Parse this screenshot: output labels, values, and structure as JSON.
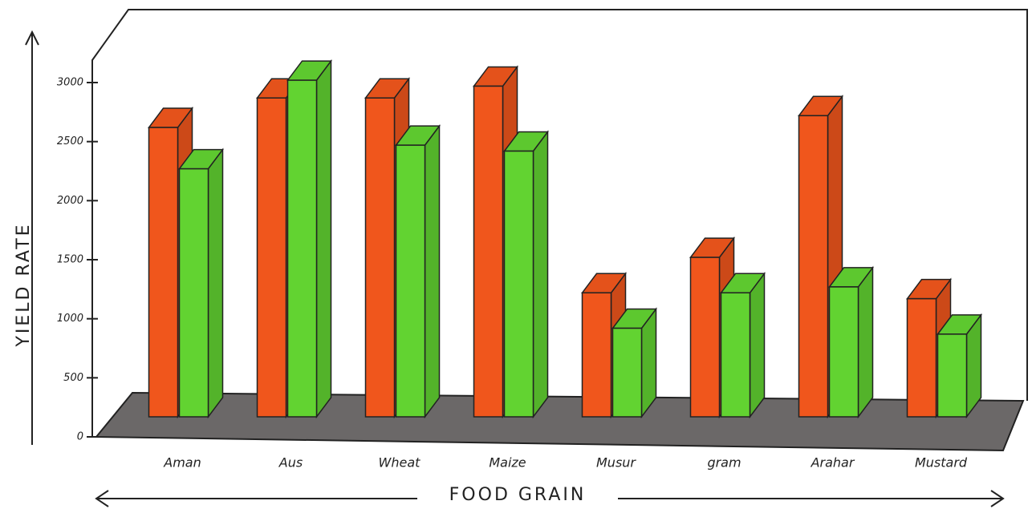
{
  "chart_data": {
    "type": "bar3d",
    "x_label": "FOOD GRAIN",
    "y_label": "YIELD RATE",
    "categories": [
      "Aman",
      "Aus",
      "Wheat",
      "Maize",
      "Musur",
      "gram",
      "Arahar",
      "Mustard"
    ],
    "series": [
      {
        "color": "#f0561c",
        "values": [
          2450,
          2700,
          2700,
          2800,
          1050,
          1350,
          2550,
          1000
        ]
      },
      {
        "color": "#62d331",
        "values": [
          2100,
          2850,
          2300,
          2250,
          750,
          1050,
          1100,
          700
        ]
      }
    ],
    "ylim": [
      0,
      3000
    ],
    "yticks": [
      0,
      500,
      1000,
      1500,
      2000,
      2500,
      3000
    ]
  }
}
